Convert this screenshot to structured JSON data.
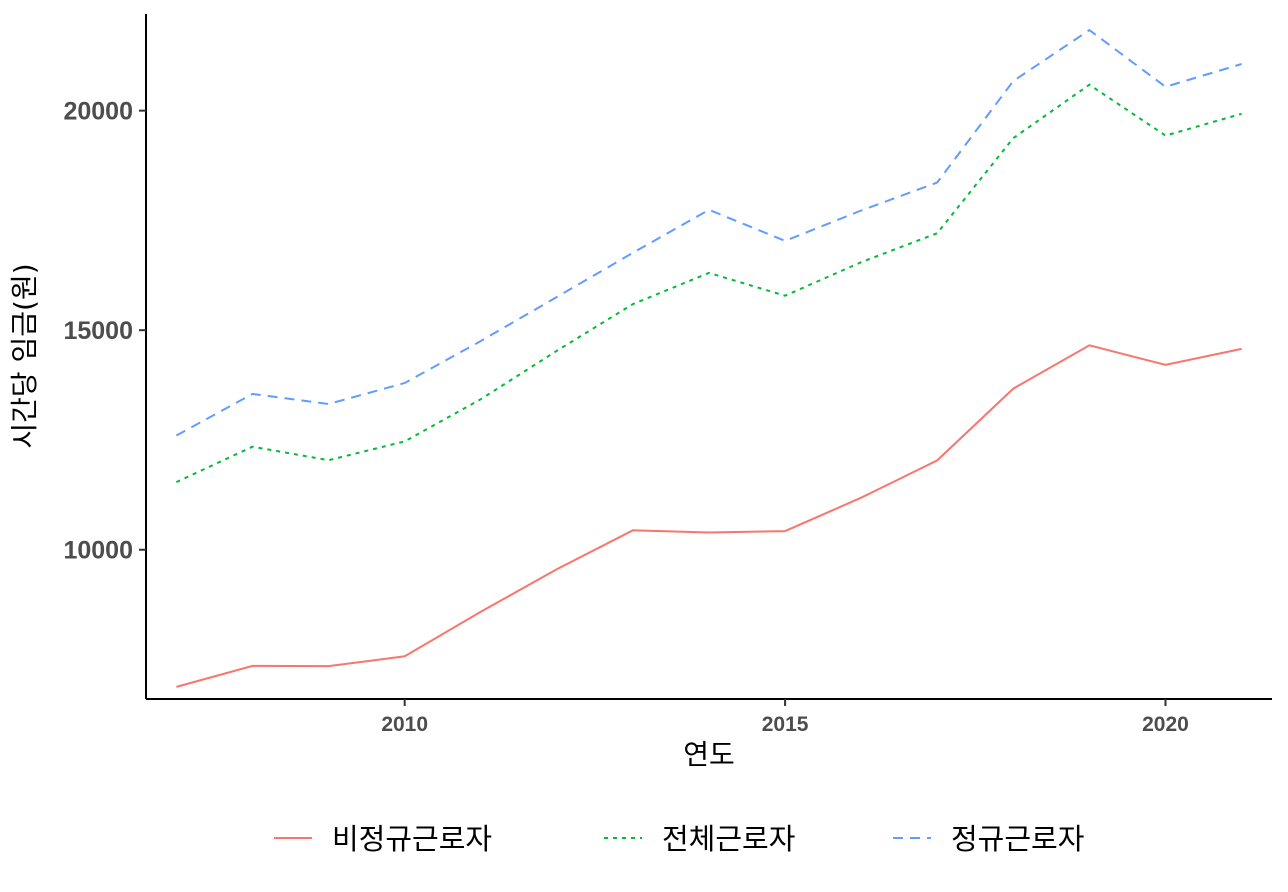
{
  "chart_data": {
    "type": "line",
    "title": "",
    "xlabel": "연도",
    "ylabel": "시간당 임금(원)",
    "xlim": [
      2006.6,
      2021.4
    ],
    "ylim": [
      6601,
      22201
    ],
    "x_ticks": [
      2010,
      2015,
      2020
    ],
    "y_ticks": [
      10000,
      15000,
      20000
    ],
    "grid": false,
    "legend_position": "bottom",
    "x": [
      2007,
      2008,
      2009,
      2010,
      2011,
      2012,
      2013,
      2014,
      2015,
      2016,
      2017,
      2018,
      2019,
      2020,
      2021
    ],
    "series": [
      {
        "name": "비정규근로자",
        "color": "#F8766D",
        "dash": "solid",
        "values": [
          6877,
          7355,
          7351,
          7573,
          8588,
          9558,
          10442,
          10393,
          10424,
          11186,
          12035,
          13669,
          14657,
          14209,
          14574
        ]
      },
      {
        "name": "전체근로자",
        "color": "#00BA38",
        "dash": "dotted",
        "values": [
          11540,
          12346,
          12040,
          12467,
          13428,
          14531,
          15595,
          16306,
          15785,
          16549,
          17208,
          19374,
          20591,
          19432,
          19929
        ]
      },
      {
        "name": "정규근로자",
        "color": "#619CFF",
        "dash": "dashed",
        "values": [
          12603,
          13550,
          13320,
          13797,
          14754,
          15757,
          16763,
          17742,
          17034,
          17725,
          18363,
          20676,
          21835,
          20544,
          21063
        ]
      }
    ]
  }
}
